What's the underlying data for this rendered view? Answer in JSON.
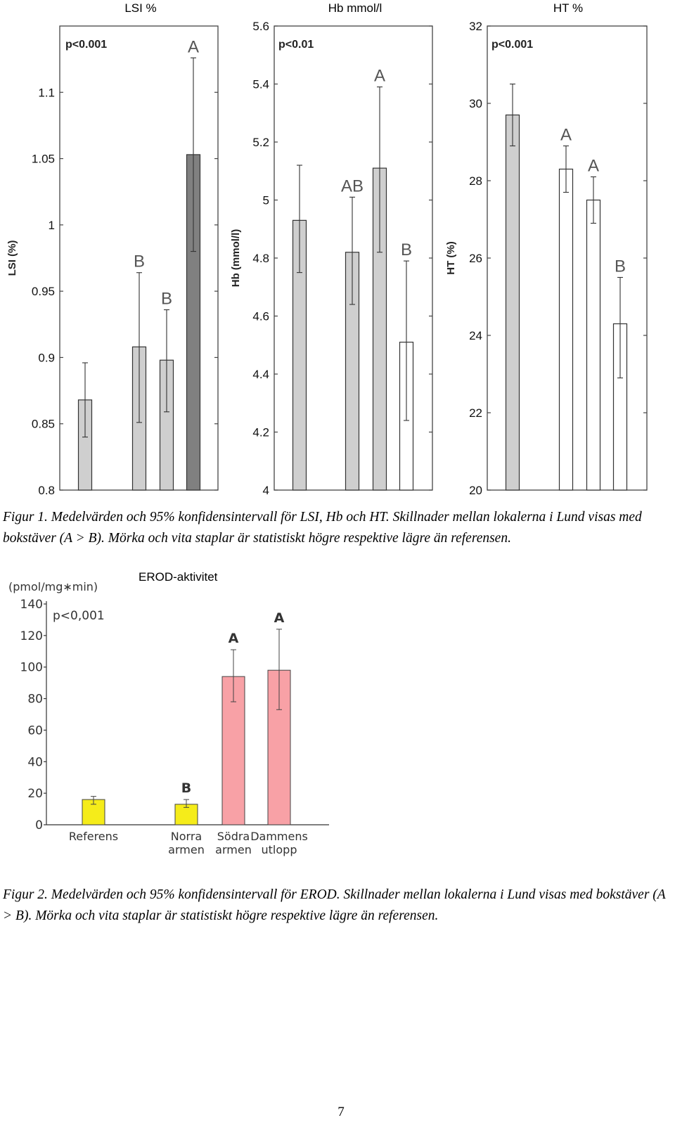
{
  "figure1": {
    "panels": [
      {
        "key": "lsi",
        "title": "LSI %",
        "ylabel": "LSI (%)",
        "pvalue": "p<0.001",
        "ticks": [
          "0.8",
          "0.85",
          "0.9",
          "0.95",
          "1",
          "1.05",
          "1.1"
        ],
        "ylim": [
          0.8,
          1.15
        ],
        "bars": [
          {
            "value": 0.868,
            "lo": 0.84,
            "hi": 0.896,
            "letter": "",
            "fill": "#cfcfcf"
          },
          {
            "value": 0.908,
            "lo": 0.851,
            "hi": 0.964,
            "letter": "B",
            "fill": "#cfcfcf"
          },
          {
            "value": 0.898,
            "lo": 0.859,
            "hi": 0.936,
            "letter": "B",
            "fill": "#cfcfcf"
          },
          {
            "value": 1.053,
            "lo": 0.98,
            "hi": 1.126,
            "letter": "A",
            "fill": "#808080"
          }
        ]
      },
      {
        "key": "hb",
        "title": "Hb mmol/l",
        "ylabel": "Hb (mmol/l)",
        "pvalue": "p<0.01",
        "ticks": [
          "4",
          "4.2",
          "4.4",
          "4.6",
          "4.8",
          "5",
          "5.2",
          "5.4",
          "5.6"
        ],
        "ylim": [
          4.0,
          5.6
        ],
        "bars": [
          {
            "value": 4.93,
            "lo": 4.75,
            "hi": 5.12,
            "letter": "",
            "fill": "#cfcfcf"
          },
          {
            "value": 4.82,
            "lo": 4.64,
            "hi": 5.01,
            "letter": "AB",
            "fill": "#cfcfcf"
          },
          {
            "value": 5.11,
            "lo": 4.82,
            "hi": 5.39,
            "letter": "A",
            "fill": "#cfcfcf"
          },
          {
            "value": 4.51,
            "lo": 4.24,
            "hi": 4.79,
            "letter": "B",
            "fill": "#ffffff"
          }
        ]
      },
      {
        "key": "ht",
        "title": "HT %",
        "ylabel": "HT (%)",
        "pvalue": "p<0.001",
        "ticks": [
          "20",
          "22",
          "24",
          "26",
          "28",
          "30",
          "32"
        ],
        "ylim": [
          20,
          32
        ],
        "bars": [
          {
            "value": 29.7,
            "lo": 28.9,
            "hi": 30.5,
            "letter": "",
            "fill": "#cfcfcf"
          },
          {
            "value": 28.3,
            "lo": 27.7,
            "hi": 28.9,
            "letter": "A",
            "fill": "#ffffff"
          },
          {
            "value": 27.5,
            "lo": 26.9,
            "hi": 28.1,
            "letter": "A",
            "fill": "#ffffff"
          },
          {
            "value": 24.3,
            "lo": 22.9,
            "hi": 25.5,
            "letter": "B",
            "fill": "#ffffff"
          }
        ]
      }
    ],
    "caption": "Figur 1. Medelvärden och 95% konfidensintervall för LSI, Hb och HT. Skillnader mellan lokalerna i Lund visas med bokstäver (A > B). Mörka och vita staplar är statistiskt högre respektive lägre än referensen."
  },
  "figure2": {
    "title": "EROD-aktivitet",
    "ylabel": "(pmol/mg∗min)",
    "pvalue": "p<0,001",
    "ticks": [
      "0",
      "20",
      "40",
      "60",
      "80",
      "100",
      "120",
      "140"
    ],
    "ylim": [
      0,
      140
    ],
    "bars": [
      {
        "label": [
          "Referens"
        ],
        "value": 16,
        "lo": 13,
        "hi": 18,
        "letter": "",
        "fill": "#f5ec1a"
      },
      {
        "label": [
          "Norra",
          "armen"
        ],
        "value": 13,
        "lo": 11,
        "hi": 16,
        "letter": "B",
        "fill": "#f5ec1a"
      },
      {
        "label": [
          "Södra",
          "armen"
        ],
        "value": 94,
        "lo": 78,
        "hi": 111,
        "letter": "A",
        "fill": "#f8a1a6"
      },
      {
        "label": [
          "Dammens",
          "utlopp"
        ],
        "value": 98,
        "lo": 73,
        "hi": 124,
        "letter": "A",
        "fill": "#f8a1a6"
      }
    ],
    "caption": "Figur 2. Medelvärden och 95% konfidensintervall för EROD. Skillnader mellan lokalerna i Lund visas med bokstäver (A > B). Mörka och vita staplar är statistiskt högre respektive lägre än referensen."
  },
  "chart_data": [
    {
      "type": "bar",
      "title": "LSI %",
      "ylabel": "LSI (%)",
      "ylim": [
        0.8,
        1.15
      ],
      "categories": [
        "1",
        "2",
        "3",
        "4"
      ],
      "values": [
        0.868,
        0.908,
        0.898,
        1.053
      ],
      "ci_low": [
        0.84,
        0.851,
        0.859,
        0.98
      ],
      "ci_high": [
        0.896,
        0.964,
        0.936,
        1.126
      ],
      "letters": [
        "",
        "B",
        "B",
        "A"
      ],
      "annotation": "p<0.001"
    },
    {
      "type": "bar",
      "title": "Hb mmol/l",
      "ylabel": "Hb (mmol/l)",
      "ylim": [
        4.0,
        5.6
      ],
      "categories": [
        "1",
        "2",
        "3",
        "4"
      ],
      "values": [
        4.93,
        4.82,
        5.11,
        4.51
      ],
      "ci_low": [
        4.75,
        4.64,
        4.82,
        4.24
      ],
      "ci_high": [
        5.12,
        5.01,
        5.39,
        4.79
      ],
      "letters": [
        "",
        "AB",
        "A",
        "B"
      ],
      "annotation": "p<0.01"
    },
    {
      "type": "bar",
      "title": "HT %",
      "ylabel": "HT (%)",
      "ylim": [
        20,
        32
      ],
      "categories": [
        "1",
        "2",
        "3",
        "4"
      ],
      "values": [
        29.7,
        28.3,
        27.5,
        24.3
      ],
      "ci_low": [
        28.9,
        27.7,
        26.9,
        22.9
      ],
      "ci_high": [
        30.5,
        28.9,
        28.1,
        25.5
      ],
      "letters": [
        "",
        "A",
        "A",
        "B"
      ],
      "annotation": "p<0.001"
    },
    {
      "type": "bar",
      "title": "EROD-aktivitet",
      "ylabel": "(pmol/mg∗min)",
      "ylim": [
        0,
        140
      ],
      "categories": [
        "Referens",
        "Norra armen",
        "Södra armen",
        "Dammens utlopp"
      ],
      "values": [
        16,
        13,
        94,
        98
      ],
      "ci_low": [
        13,
        11,
        78,
        73
      ],
      "ci_high": [
        18,
        16,
        111,
        124
      ],
      "letters": [
        "",
        "B",
        "A",
        "A"
      ],
      "annotation": "p<0,001"
    }
  ],
  "page_number": "7"
}
